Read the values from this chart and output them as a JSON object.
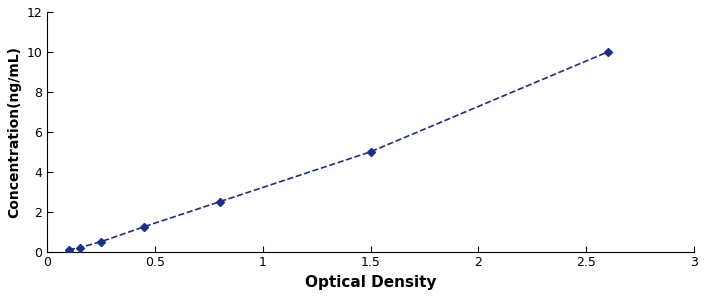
{
  "x": [
    0.1,
    0.15,
    0.25,
    0.45,
    0.8,
    1.5,
    2.6
  ],
  "y": [
    0.1,
    0.2,
    0.5,
    1.25,
    2.5,
    5.0,
    10.0
  ],
  "line_color": "#1a2f8a",
  "marker_color": "#1a2f8a",
  "marker": "D",
  "marker_size": 4,
  "line_width": 1.2,
  "xlabel": "Optical Density",
  "ylabel": "Concentration(ng/mL)",
  "xlim": [
    0,
    3
  ],
  "ylim": [
    0,
    12
  ],
  "xticks": [
    0,
    0.5,
    1,
    1.5,
    2,
    2.5,
    3
  ],
  "yticks": [
    0,
    2,
    4,
    6,
    8,
    10,
    12
  ],
  "background_color": "#ffffff",
  "xlabel_fontsize": 11,
  "ylabel_fontsize": 10,
  "tick_fontsize": 9
}
